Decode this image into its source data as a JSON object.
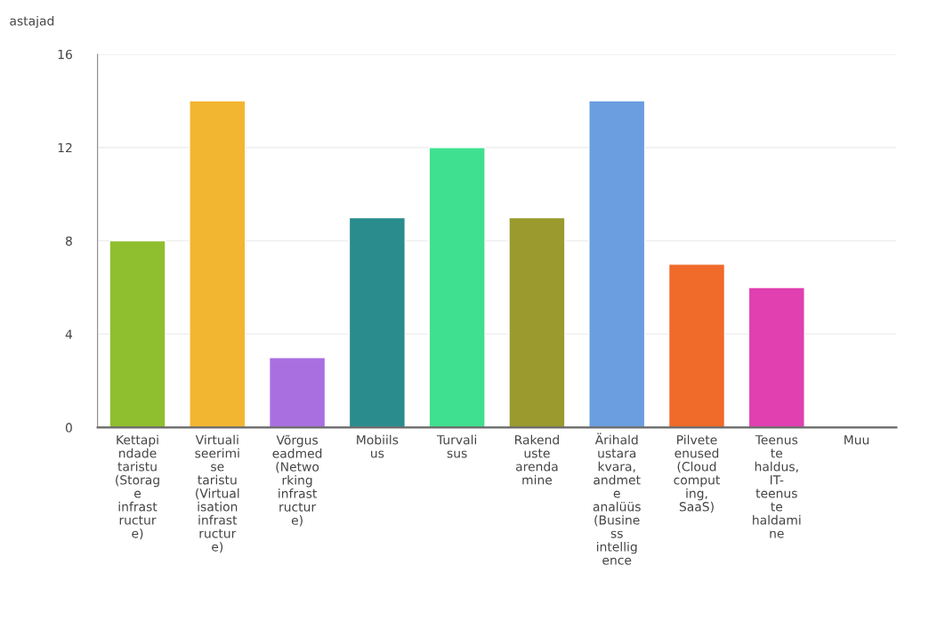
{
  "chart_data": {
    "type": "bar",
    "ylabel": "astajad",
    "categories": [
      "Kettapi\nndade\ntaristu\n(Storag\ne\ninfrast\nructur\ne)",
      "Virtuali\nseerimi\nse\ntaristu\n(Virtual\nisation\ninfrast\nructur\ne)",
      "Võrgus\neadmed\n(Netwo\nrking\ninfrast\nructur\ne)",
      "Mobiils\nus",
      "Turvali\nsus",
      "Rakend\nuste\narenda\nmine",
      "Ärihald\nustara\nkvara,\nandmet\ne\nanalüüs\n(Busine\nss\nintellig\nence",
      "Pilvete\nenused\n(Cloud\ncomput\ning,\nSaaS)",
      "Teenus\nte\nhaldus,\nIT-\nteenus\nte\nhaldami\nne",
      "Muu"
    ],
    "values": [
      8,
      14,
      3,
      9,
      12,
      9,
      14,
      7,
      6,
      0
    ],
    "colors": [
      "#8fbf2e",
      "#f2b631",
      "#a96fe0",
      "#2a8c8c",
      "#3fe08f",
      "#9a9a2e",
      "#6a9ee0",
      "#f06a2a",
      "#e040b0",
      null
    ],
    "ylim": [
      0,
      16
    ],
    "yticks": [
      0,
      4,
      8,
      12,
      16
    ],
    "grid": "y"
  }
}
